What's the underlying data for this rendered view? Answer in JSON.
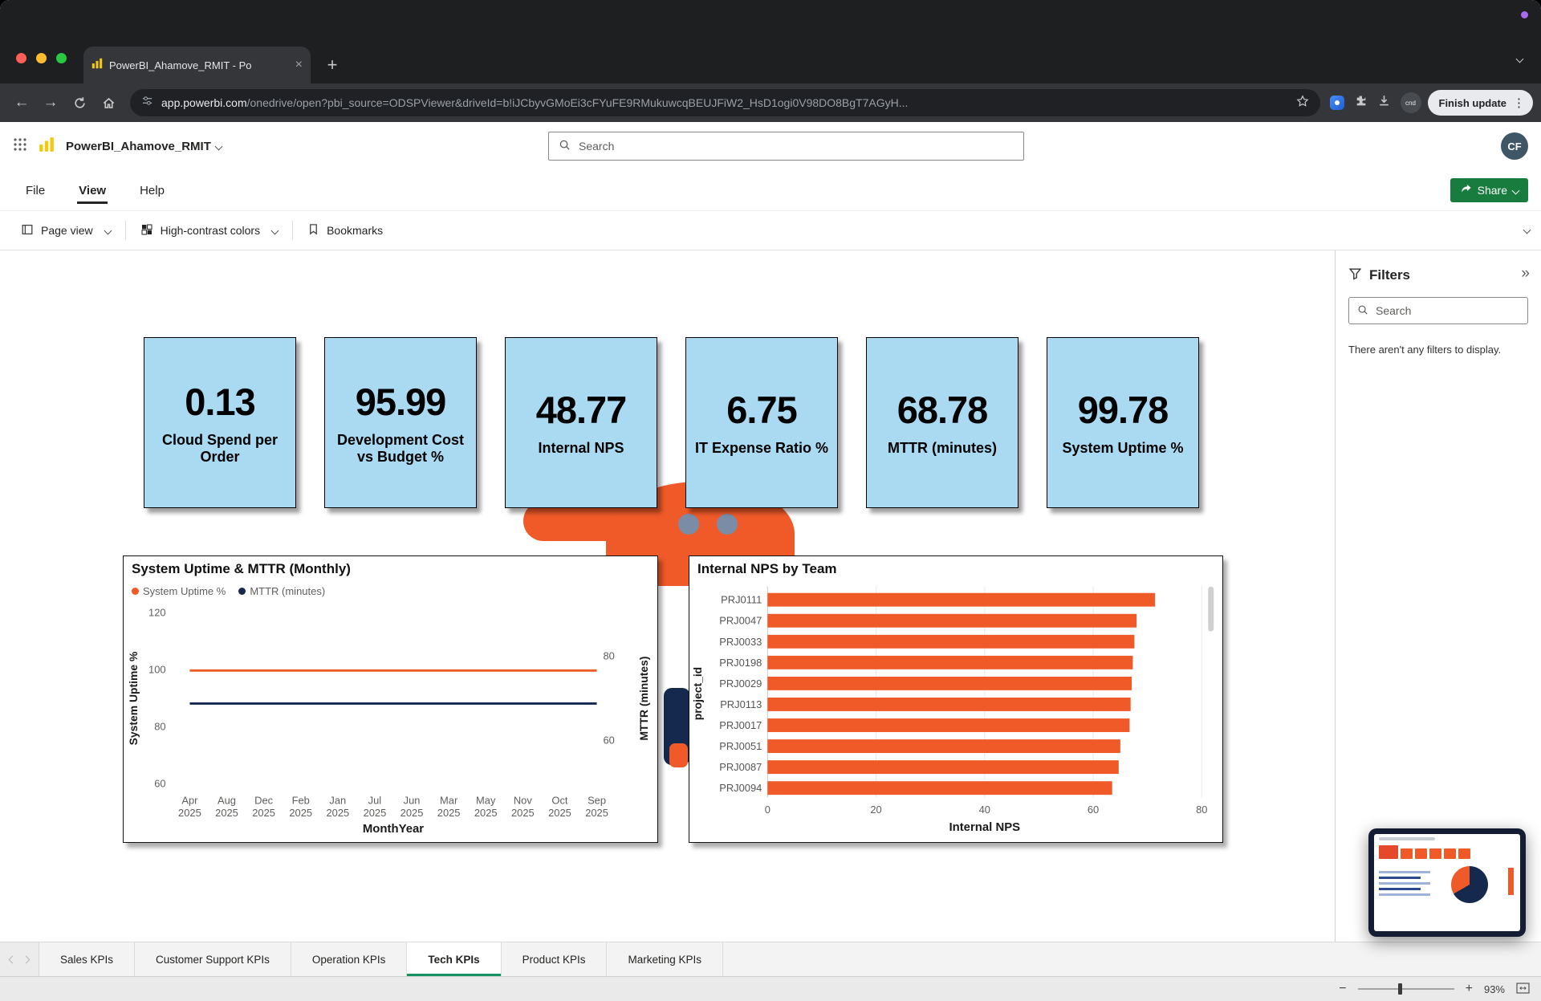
{
  "colors": {
    "orange": "#F05A28",
    "navy": "#15294E",
    "card_blue": "#A9DAF2",
    "share_green": "#177C3E",
    "tab_active_green": "#12925E",
    "pbi_yellow": "#F2C811"
  },
  "browser": {
    "tab_title": "PowerBI_Ahamove_RMIT - Po",
    "url_domain": "app.powerbi.com",
    "url_path": "/onedrive/open?pbi_source=ODSPViewer&driveId=b!iJCbyvGMoEi3cFYuFE9RMukuwcqBEUJFiW2_HsD1ogi0V98DO8BgT7AGyH...",
    "update_button_label": "Finish update",
    "profile_label": "cnd"
  },
  "pbi_header": {
    "app_title": "PowerBI_Ahamove_RMIT",
    "search_placeholder": "Search",
    "avatar_initials": "CF"
  },
  "menubar": {
    "items": [
      "File",
      "View",
      "Help"
    ],
    "active_item": "View",
    "share_label": "Share"
  },
  "view_toolbar": {
    "page_view_label": "Page view",
    "high_contrast_label": "High-contrast colors",
    "bookmarks_label": "Bookmarks"
  },
  "kpi_cards": [
    {
      "value": "0.13",
      "label": "Cloud Spend per Order"
    },
    {
      "value": "95.99",
      "label": "Development Cost vs Budget %"
    },
    {
      "value": "48.77",
      "label": "Internal NPS"
    },
    {
      "value": "6.75",
      "label": "IT Expense Ratio %"
    },
    {
      "value": "68.78",
      "label": "MTTR (minutes)"
    },
    {
      "value": "99.78",
      "label": "System Uptime %"
    }
  ],
  "filters_panel": {
    "title": "Filters",
    "search_placeholder": "Search",
    "empty_message": "There aren't any filters to display."
  },
  "sheet_tabs": {
    "items": [
      "Sales KPIs",
      "Customer Support KPIs",
      "Operation KPIs",
      "Tech KPIs",
      "Product KPIs",
      "Marketing KPIs"
    ],
    "active": "Tech KPIs"
  },
  "status_bar": {
    "zoom_level": "93%"
  },
  "chart_data": [
    {
      "type": "line",
      "title": "System Uptime & MTTR (Monthly)",
      "xlabel": "MonthYear",
      "x": [
        "Apr 2025",
        "Aug 2025",
        "Dec 2025",
        "Feb 2025",
        "Jan 2025",
        "Jul 2025",
        "Jun 2025",
        "Mar 2025",
        "May 2025",
        "Nov 2025",
        "Oct 2025",
        "Sep 2025"
      ],
      "y_left": {
        "label": "System Uptime %",
        "ticks": [
          60,
          80,
          100,
          120
        ],
        "range": [
          60,
          120
        ]
      },
      "y_right": {
        "label": "MTTR (minutes)",
        "ticks": [
          60,
          80
        ]
      },
      "legend_position": "top-left",
      "grid": false,
      "series": [
        {
          "name": "System Uptime %",
          "axis": "left",
          "color": "#F05A28",
          "values": [
            99.78,
            99.78,
            99.78,
            99.78,
            99.78,
            99.78,
            99.78,
            99.78,
            99.78,
            99.78,
            99.78,
            99.78
          ]
        },
        {
          "name": "MTTR (minutes)",
          "axis": "right",
          "color": "#15294E",
          "values": [
            68.78,
            68.78,
            68.78,
            68.78,
            68.78,
            68.78,
            68.78,
            68.78,
            68.78,
            68.78,
            68.78,
            68.78
          ]
        }
      ]
    },
    {
      "type": "bar",
      "orientation": "horizontal",
      "title": "Internal NPS by Team",
      "xlabel": "Internal NPS",
      "ylabel": "project_id",
      "xlim": [
        0,
        80
      ],
      "xticks": [
        0,
        20,
        40,
        60,
        80
      ],
      "categories": [
        "PRJ0111",
        "PRJ0047",
        "PRJ0033",
        "PRJ0198",
        "PRJ0029",
        "PRJ0113",
        "PRJ0017",
        "PRJ0051",
        "PRJ0087",
        "PRJ0094"
      ],
      "values": [
        71.4,
        68.0,
        67.6,
        67.3,
        67.1,
        66.9,
        66.7,
        65.0,
        64.7,
        63.5
      ],
      "bar_color": "#F05A28",
      "grid": true
    }
  ]
}
